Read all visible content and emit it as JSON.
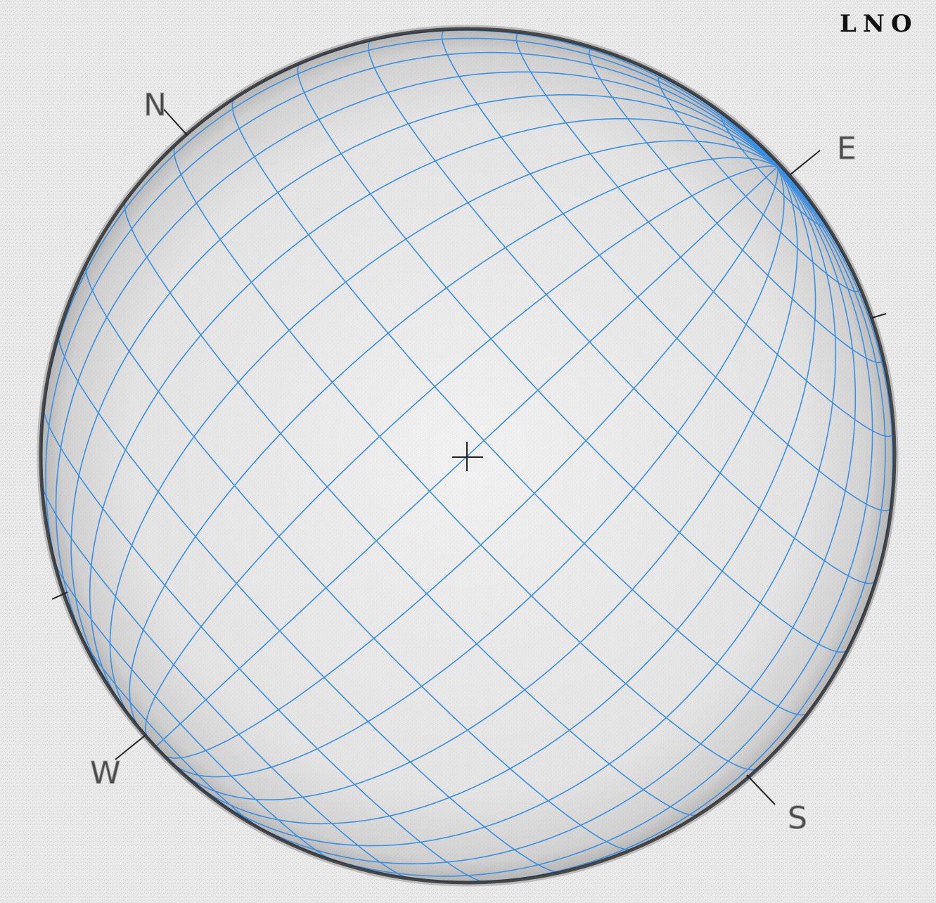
{
  "observatory_label": "LNO",
  "cardinals": {
    "north": "N",
    "east": "E",
    "south": "S",
    "west": "W"
  },
  "colors": {
    "grid": "#3d8fe0",
    "disk_edge": "#2e2e2e",
    "disk_fill": "#dddddd",
    "background": "#f1f1f1",
    "marker": "#222222"
  },
  "grid": {
    "latitude_step_deg": 10,
    "longitude_step_deg": 10,
    "position_angle_deg": -47,
    "b0_deg": 7
  },
  "center_marker": "crosshair"
}
